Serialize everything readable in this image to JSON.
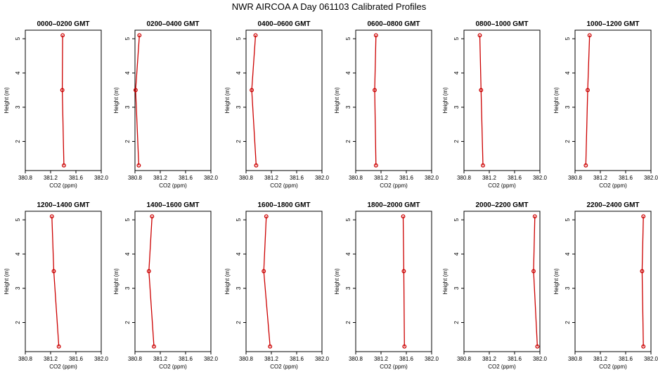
{
  "title": "NWR AIRCOA A  Day 061103  Calibrated Profiles",
  "chart_data": [
    {
      "type": "line",
      "title": "0000–0200 GMT",
      "xlabel": "CO2 (ppm)",
      "ylabel": "Height (m)",
      "xlim": [
        380.8,
        382.0
      ],
      "ylim": [
        1.3,
        5.1
      ],
      "xticks": [
        "380.8",
        "381.2",
        "381.6",
        "382.0"
      ],
      "yticks": [
        "2",
        "3",
        "4",
        "5"
      ],
      "series": [
        {
          "x": [
            381.39,
            381.385,
            381.41
          ],
          "y": [
            5.1,
            3.5,
            1.3
          ]
        }
      ]
    },
    {
      "type": "line",
      "title": "0200–0400 GMT",
      "xlabel": "CO2 (ppm)",
      "ylabel": "Height (m)",
      "xlim": [
        380.8,
        382.0
      ],
      "ylim": [
        1.3,
        5.1
      ],
      "xticks": [
        "380.8",
        "381.2",
        "381.6",
        "382.0"
      ],
      "yticks": [
        "2",
        "3",
        "4",
        "5"
      ],
      "series": [
        {
          "x": [
            380.87,
            380.81,
            380.86
          ],
          "y": [
            5.1,
            3.5,
            1.3
          ]
        }
      ]
    },
    {
      "type": "line",
      "title": "0400–0600 GMT",
      "xlabel": "CO2 (ppm)",
      "ylabel": "Height (m)",
      "xlim": [
        380.8,
        382.0
      ],
      "ylim": [
        1.3,
        5.1
      ],
      "xticks": [
        "380.8",
        "381.2",
        "381.6",
        "382.0"
      ],
      "yticks": [
        "2",
        "3",
        "4",
        "5"
      ],
      "series": [
        {
          "x": [
            380.95,
            380.89,
            380.96
          ],
          "y": [
            5.1,
            3.5,
            1.3
          ]
        }
      ]
    },
    {
      "type": "line",
      "title": "0600–0800 GMT",
      "xlabel": "CO2 (ppm)",
      "ylabel": "Height (m)",
      "xlim": [
        380.8,
        382.0
      ],
      "ylim": [
        1.3,
        5.1
      ],
      "xticks": [
        "380.8",
        "381.2",
        "381.6",
        "382.0"
      ],
      "yticks": [
        "2",
        "3",
        "4",
        "5"
      ],
      "series": [
        {
          "x": [
            381.12,
            381.1,
            381.12
          ],
          "y": [
            5.1,
            3.5,
            1.3
          ]
        }
      ]
    },
    {
      "type": "line",
      "title": "0800–1000 GMT",
      "xlabel": "CO2 (ppm)",
      "ylabel": "Height (m)",
      "xlim": [
        380.8,
        382.0
      ],
      "ylim": [
        1.3,
        5.1
      ],
      "xticks": [
        "380.8",
        "381.2",
        "381.6",
        "382.0"
      ],
      "yticks": [
        "2",
        "3",
        "4",
        "5"
      ],
      "series": [
        {
          "x": [
            381.05,
            381.07,
            381.1
          ],
          "y": [
            5.1,
            3.5,
            1.3
          ]
        }
      ]
    },
    {
      "type": "line",
      "title": "1000–1200 GMT",
      "xlabel": "CO2 (ppm)",
      "ylabel": "Height (m)",
      "xlim": [
        380.8,
        382.0
      ],
      "ylim": [
        1.3,
        5.1
      ],
      "xticks": [
        "380.8",
        "381.2",
        "381.6",
        "382.0"
      ],
      "yticks": [
        "2",
        "3",
        "4",
        "5"
      ],
      "series": [
        {
          "x": [
            381.03,
            381.0,
            380.97
          ],
          "y": [
            5.1,
            3.5,
            1.3
          ]
        }
      ]
    },
    {
      "type": "line",
      "title": "1200–1400 GMT",
      "xlabel": "CO2 (ppm)",
      "ylabel": "Height (m)",
      "xlim": [
        380.8,
        382.0
      ],
      "ylim": [
        1.3,
        5.1
      ],
      "xticks": [
        "380.8",
        "381.2",
        "381.6",
        "382.0"
      ],
      "yticks": [
        "2",
        "3",
        "4",
        "5"
      ],
      "series": [
        {
          "x": [
            381.22,
            381.25,
            381.33
          ],
          "y": [
            5.1,
            3.5,
            1.3
          ]
        }
      ]
    },
    {
      "type": "line",
      "title": "1400–1600 GMT",
      "xlabel": "CO2 (ppm)",
      "ylabel": "Height (m)",
      "xlim": [
        380.8,
        382.0
      ],
      "ylim": [
        1.3,
        5.1
      ],
      "xticks": [
        "380.8",
        "381.2",
        "381.6",
        "382.0"
      ],
      "yticks": [
        "2",
        "3",
        "4",
        "5"
      ],
      "series": [
        {
          "x": [
            381.07,
            381.02,
            381.1
          ],
          "y": [
            5.1,
            3.5,
            1.3
          ]
        }
      ]
    },
    {
      "type": "line",
      "title": "1600–1800 GMT",
      "xlabel": "CO2 (ppm)",
      "ylabel": "Height (m)",
      "xlim": [
        380.8,
        382.0
      ],
      "ylim": [
        1.3,
        5.1
      ],
      "xticks": [
        "380.8",
        "381.2",
        "381.6",
        "382.0"
      ],
      "yticks": [
        "2",
        "3",
        "4",
        "5"
      ],
      "series": [
        {
          "x": [
            381.12,
            381.08,
            381.18
          ],
          "y": [
            5.1,
            3.5,
            1.3
          ]
        }
      ]
    },
    {
      "type": "line",
      "title": "1800–2000 GMT",
      "xlabel": "CO2 (ppm)",
      "ylabel": "Height (m)",
      "xlim": [
        380.8,
        382.0
      ],
      "ylim": [
        1.3,
        5.1
      ],
      "xticks": [
        "380.8",
        "381.2",
        "381.6",
        "382.0"
      ],
      "yticks": [
        "2",
        "3",
        "4",
        "5"
      ],
      "series": [
        {
          "x": [
            381.55,
            381.56,
            381.57
          ],
          "y": [
            5.1,
            3.5,
            1.3
          ]
        }
      ]
    },
    {
      "type": "line",
      "title": "2000–2200 GMT",
      "xlabel": "CO2 (ppm)",
      "ylabel": "Height (m)",
      "xlim": [
        380.8,
        382.0
      ],
      "ylim": [
        1.3,
        5.1
      ],
      "xticks": [
        "380.8",
        "381.2",
        "381.6",
        "382.0"
      ],
      "yticks": [
        "2",
        "3",
        "4",
        "5"
      ],
      "series": [
        {
          "x": [
            381.92,
            381.9,
            381.96
          ],
          "y": [
            5.1,
            3.5,
            1.3
          ]
        }
      ]
    },
    {
      "type": "line",
      "title": "2200–2400 GMT",
      "xlabel": "CO2 (ppm)",
      "ylabel": "Height (m)",
      "xlim": [
        380.8,
        382.0
      ],
      "ylim": [
        1.3,
        5.1
      ],
      "xticks": [
        "380.8",
        "381.2",
        "381.6",
        "382.0"
      ],
      "yticks": [
        "2",
        "3",
        "4",
        "5"
      ],
      "series": [
        {
          "x": [
            381.88,
            381.86,
            381.88
          ],
          "y": [
            5.1,
            3.5,
            1.3
          ]
        }
      ]
    }
  ],
  "colors": {
    "series_line": "#cc0000",
    "marker": "#cc0000",
    "axis": "#000000"
  }
}
